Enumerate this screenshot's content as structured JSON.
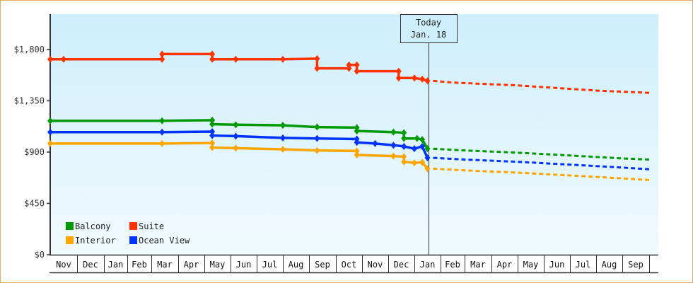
{
  "chart_data": {
    "type": "line",
    "title": "",
    "xlabel": "",
    "ylabel": "",
    "ylim": [
      0,
      2100
    ],
    "y_ticks": [
      {
        "value": 0,
        "label": "$0"
      },
      {
        "value": 450,
        "label": "$450"
      },
      {
        "value": 900,
        "label": "$900"
      },
      {
        "value": 1350,
        "label": "$1,350"
      },
      {
        "value": 1800,
        "label": "$1,800"
      }
    ],
    "x_ticks": [
      "Nov",
      "Dec",
      "Jan",
      "Feb",
      "Mar",
      "Apr",
      "May",
      "Jun",
      "Jul",
      "Aug",
      "Sep",
      "Oct",
      "Nov",
      "Dec",
      "Jan",
      "Feb",
      "Mar",
      "Apr",
      "May",
      "Jun",
      "Jul",
      "Aug",
      "Sep"
    ],
    "today_marker": {
      "line1": "Today",
      "line2": "Jan. 18"
    },
    "legend": [
      {
        "name": "Balcony",
        "color": "#009900"
      },
      {
        "name": "Suite",
        "color": "#ff3300"
      },
      {
        "name": "Interior",
        "color": "#ffa500"
      },
      {
        "name": "Ocean View",
        "color": "#0033ff"
      }
    ],
    "series": [
      {
        "name": "Suite",
        "color": "#ff3300",
        "historical": [
          [
            0,
            1715
          ],
          [
            0.5,
            1715
          ],
          [
            4.4,
            1715
          ],
          [
            4.4,
            1760
          ],
          [
            6.3,
            1760
          ],
          [
            6.3,
            1715
          ],
          [
            7.2,
            1715
          ],
          [
            9.0,
            1715
          ],
          [
            10.3,
            1720
          ],
          [
            10.3,
            1635
          ],
          [
            11.5,
            1635
          ],
          [
            11.5,
            1665
          ],
          [
            11.8,
            1665
          ],
          [
            11.8,
            1610
          ],
          [
            13.4,
            1610
          ],
          [
            13.4,
            1550
          ],
          [
            14.0,
            1550
          ],
          [
            14.3,
            1540
          ],
          [
            14.5,
            1525
          ]
        ],
        "projected": [
          [
            14.5,
            1525
          ],
          [
            15.5,
            1510
          ],
          [
            17,
            1495
          ],
          [
            18,
            1485
          ],
          [
            19,
            1470
          ],
          [
            20,
            1455
          ],
          [
            21,
            1440
          ],
          [
            22,
            1430
          ],
          [
            23.0,
            1420
          ]
        ]
      },
      {
        "name": "Balcony",
        "color": "#009900",
        "historical": [
          [
            0,
            1175
          ],
          [
            4.4,
            1175
          ],
          [
            6.3,
            1180
          ],
          [
            6.3,
            1145
          ],
          [
            7.2,
            1140
          ],
          [
            9.0,
            1135
          ],
          [
            10.3,
            1120
          ],
          [
            11.8,
            1115
          ],
          [
            11.8,
            1085
          ],
          [
            13.2,
            1075
          ],
          [
            13.6,
            1070
          ],
          [
            13.6,
            1020
          ],
          [
            14.1,
            1020
          ],
          [
            14.3,
            1010
          ],
          [
            14.5,
            930
          ]
        ],
        "projected": [
          [
            14.5,
            930
          ],
          [
            16,
            915
          ],
          [
            18,
            895
          ],
          [
            20,
            870
          ],
          [
            22,
            845
          ],
          [
            23.0,
            835
          ]
        ]
      },
      {
        "name": "Ocean View",
        "color": "#0033ff",
        "historical": [
          [
            0,
            1075
          ],
          [
            4.4,
            1075
          ],
          [
            6.3,
            1080
          ],
          [
            6.3,
            1045
          ],
          [
            7.2,
            1040
          ],
          [
            9.0,
            1025
          ],
          [
            10.3,
            1020
          ],
          [
            11.8,
            1015
          ],
          [
            11.8,
            985
          ],
          [
            12.5,
            975
          ],
          [
            13.2,
            960
          ],
          [
            13.6,
            950
          ],
          [
            14.0,
            930
          ],
          [
            14.3,
            950
          ],
          [
            14.5,
            850
          ]
        ],
        "projected": [
          [
            14.5,
            850
          ],
          [
            16,
            835
          ],
          [
            18,
            815
          ],
          [
            20,
            790
          ],
          [
            22,
            765
          ],
          [
            23.0,
            750
          ]
        ]
      },
      {
        "name": "Interior",
        "color": "#ffa500",
        "historical": [
          [
            0,
            975
          ],
          [
            4.4,
            975
          ],
          [
            6.3,
            980
          ],
          [
            6.3,
            940
          ],
          [
            7.2,
            935
          ],
          [
            9.0,
            925
          ],
          [
            10.3,
            915
          ],
          [
            11.8,
            910
          ],
          [
            11.8,
            875
          ],
          [
            13.2,
            865
          ],
          [
            13.6,
            860
          ],
          [
            13.6,
            815
          ],
          [
            14.0,
            805
          ],
          [
            14.3,
            810
          ],
          [
            14.5,
            755
          ]
        ],
        "projected": [
          [
            14.5,
            755
          ],
          [
            16,
            740
          ],
          [
            18,
            720
          ],
          [
            20,
            695
          ],
          [
            22,
            670
          ],
          [
            23.0,
            655
          ]
        ]
      }
    ]
  }
}
